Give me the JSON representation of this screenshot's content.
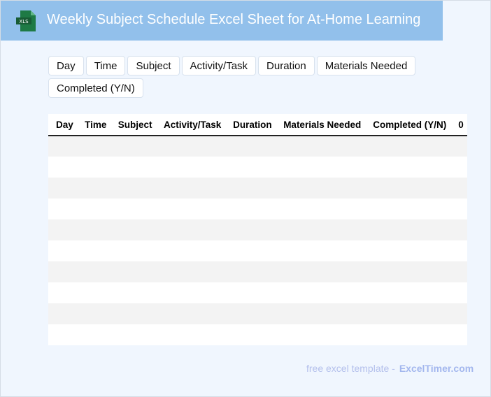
{
  "header": {
    "title": "Weekly Subject Schedule Excel Sheet for At-Home Learning",
    "logo_text": "XLS",
    "accent": "#92c0eb"
  },
  "column_buttons": [
    "Day",
    "Time",
    "Subject",
    "Activity/Task",
    "Duration",
    "Materials Needed",
    "Completed (Y/N)"
  ],
  "table": {
    "headers": [
      "Day",
      "Time",
      "Subject",
      "Activity/Task",
      "Duration",
      "Materials Needed",
      "Completed (Y/N)",
      "0"
    ],
    "row_count": 10
  },
  "footer": {
    "text": "free excel template -",
    "brand": "ExcelTimer.com"
  }
}
